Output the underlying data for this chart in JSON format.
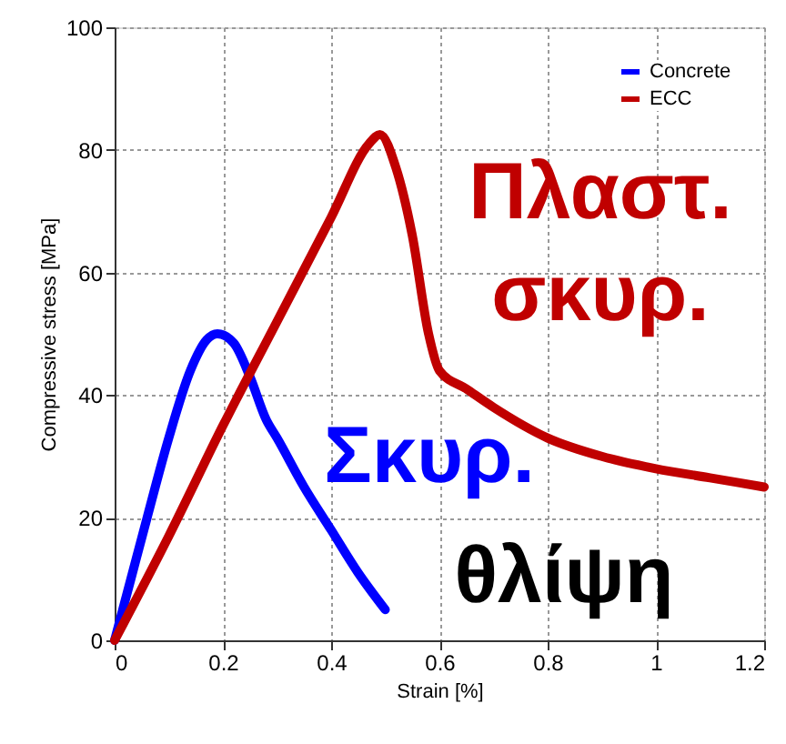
{
  "chart_data": {
    "type": "line",
    "xlabel": "Strain [%]",
    "ylabel": "Compressive stress [MPa]",
    "xlim": [
      0,
      1.2
    ],
    "xticks": [
      0,
      0.2,
      0.4,
      0.6,
      0.8,
      1,
      1.2
    ],
    "ylim": [
      0,
      100
    ],
    "yticks": [
      0,
      20,
      40,
      60,
      80,
      100
    ],
    "grid": true,
    "legend": "top right",
    "line_style": "solid",
    "marker": "none",
    "series": [
      {
        "name": "Concrete",
        "color": "#0000ff",
        "x": [
          0,
          0.03,
          0.06,
          0.1,
          0.14,
          0.17,
          0.19,
          0.22,
          0.25,
          0.28,
          0.3,
          0.35,
          0.4,
          0.45,
          0.5
        ],
        "values": [
          0,
          10,
          20,
          33,
          44,
          49,
          50,
          48.5,
          43,
          36,
          33,
          25,
          18,
          11,
          5
        ]
      },
      {
        "name": "ECC",
        "color": "#c00000",
        "x": [
          0,
          0.1,
          0.2,
          0.3,
          0.4,
          0.47,
          0.49,
          0.52,
          0.55,
          0.58,
          0.6,
          0.65,
          0.7,
          0.8,
          0.9,
          1.0,
          1.1,
          1.2
        ],
        "values": [
          0,
          17,
          35,
          52,
          69,
          81,
          82.5,
          77,
          66,
          50,
          44,
          41,
          38,
          33,
          30,
          28,
          26.5,
          25
        ]
      }
    ],
    "annotations": [
      "Σκυρ.",
      "Πλαστ.\nσκυρ.",
      "θλίψη"
    ]
  }
}
